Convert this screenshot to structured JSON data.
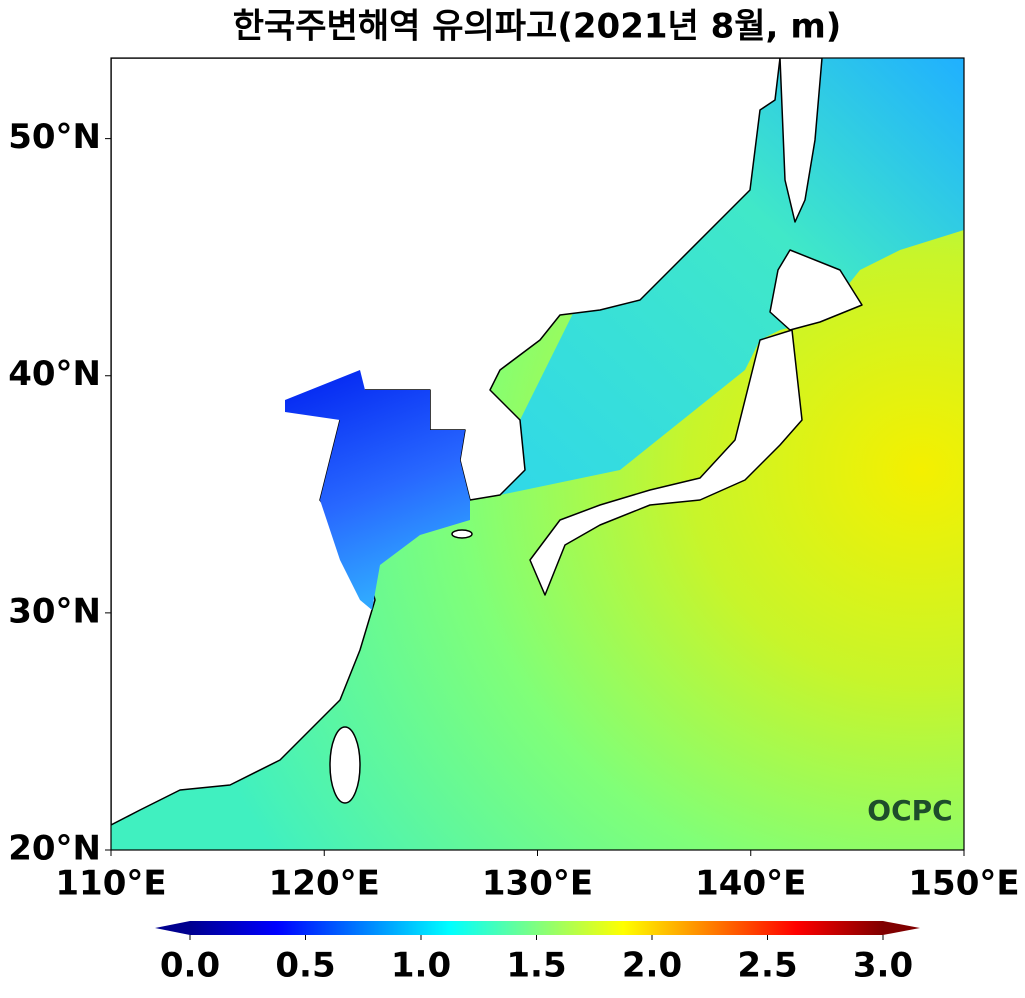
{
  "chart_data": {
    "type": "map",
    "title": "한국주변해역 유의파고(2021년 8월, m)",
    "xlim": [
      110,
      150
    ],
    "ylim": [
      20,
      53.4
    ],
    "xticks": [
      {
        "value": 110,
        "label": "110°E"
      },
      {
        "value": 120,
        "label": "120°E"
      },
      {
        "value": 130,
        "label": "130°E"
      },
      {
        "value": 140,
        "label": "140°E"
      },
      {
        "value": 150,
        "label": "150°E"
      }
    ],
    "yticks": [
      {
        "value": 20,
        "label": "20°N"
      },
      {
        "value": 30,
        "label": "30°N"
      },
      {
        "value": 40,
        "label": "40°N"
      },
      {
        "value": 50,
        "label": "50°N"
      }
    ],
    "colorbar": {
      "lim": [
        0,
        3
      ],
      "ticks": [
        {
          "value": 0,
          "label": "0.0"
        },
        0.5,
        {
          "value": 1,
          "label": "1.0"
        },
        1.5,
        {
          "value": 2,
          "label": "2.0"
        },
        2.5,
        {
          "value": 3,
          "label": "3.0"
        }
      ]
    },
    "logo": "OCPC"
  }
}
